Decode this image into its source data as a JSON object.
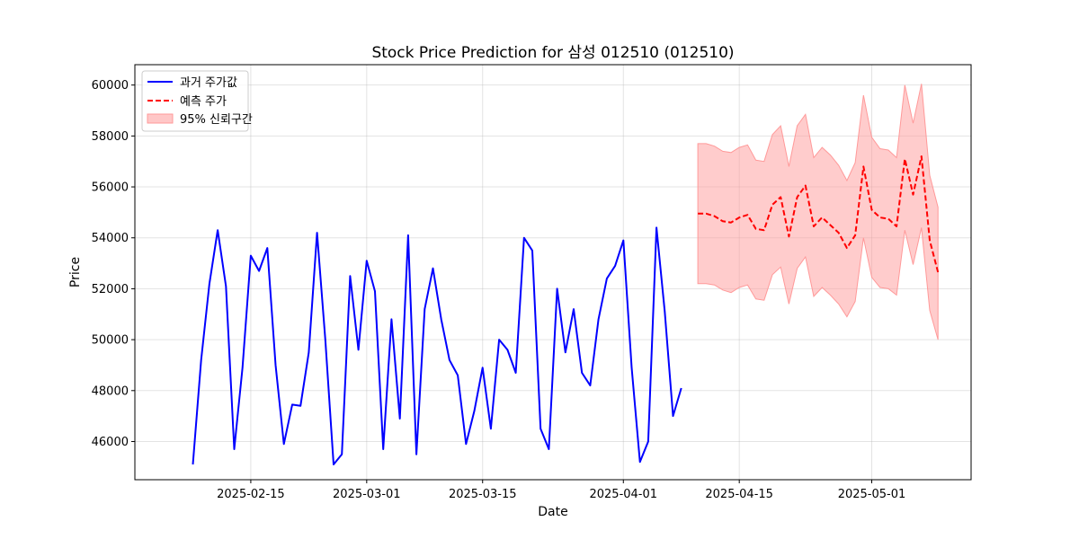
{
  "chart_data": {
    "type": "line",
    "title": "Stock Price Prediction for 삼성 012510 (012510)",
    "xlabel": "Date",
    "ylabel": "Price",
    "grid": true,
    "legend_position": "top-left",
    "x_range": [
      "2025-02-01",
      "2025-05-13"
    ],
    "ylim": [
      44500,
      60800
    ],
    "x_ticks": [
      "2025-02-15",
      "2025-03-01",
      "2025-03-15",
      "2025-04-01",
      "2025-04-15",
      "2025-05-01"
    ],
    "y_ticks": [
      46000,
      48000,
      50000,
      52000,
      54000,
      56000,
      58000,
      60000
    ],
    "colors": {
      "historical": "#0000ff",
      "forecast": "#ff0000",
      "interval_fill": "#ff9999"
    },
    "legend": {
      "historical": "과거 주가값",
      "forecast": "예측 주가",
      "interval": "95% 신뢰구간"
    },
    "historical": {
      "dates": [
        "2025-02-08",
        "2025-02-09",
        "2025-02-10",
        "2025-02-11",
        "2025-02-12",
        "2025-02-13",
        "2025-02-14",
        "2025-02-15",
        "2025-02-16",
        "2025-02-17",
        "2025-02-18",
        "2025-02-19",
        "2025-02-20",
        "2025-02-21",
        "2025-02-22",
        "2025-02-23",
        "2025-02-24",
        "2025-02-25",
        "2025-02-26",
        "2025-02-27",
        "2025-02-28",
        "2025-03-01",
        "2025-03-02",
        "2025-03-03",
        "2025-03-04",
        "2025-03-05",
        "2025-03-06",
        "2025-03-07",
        "2025-03-08",
        "2025-03-09",
        "2025-03-10",
        "2025-03-11",
        "2025-03-12",
        "2025-03-13",
        "2025-03-14",
        "2025-03-15",
        "2025-03-16",
        "2025-03-17",
        "2025-03-18",
        "2025-03-19",
        "2025-03-20",
        "2025-03-21",
        "2025-03-22",
        "2025-03-23",
        "2025-03-24",
        "2025-03-25",
        "2025-03-26",
        "2025-03-27",
        "2025-03-28",
        "2025-03-29",
        "2025-03-30",
        "2025-03-31",
        "2025-04-01",
        "2025-04-02",
        "2025-04-03",
        "2025-04-04",
        "2025-04-05",
        "2025-04-06",
        "2025-04-07",
        "2025-04-08"
      ],
      "values": [
        45100,
        49200,
        52200,
        54300,
        52100,
        45700,
        48900,
        53300,
        52700,
        53600,
        49000,
        45900,
        47450,
        47400,
        49500,
        54200,
        50000,
        45100,
        45500,
        52500,
        49600,
        53100,
        51900,
        45700,
        50800,
        46900,
        54100,
        45500,
        51200,
        52800,
        50800,
        49200,
        48600,
        45900,
        47200,
        48900,
        46500,
        50000,
        49600,
        48700,
        54000,
        53500,
        46500,
        45700,
        52000,
        49500,
        51200,
        48700,
        48200,
        50800,
        52400,
        52900,
        53900,
        48900,
        45200,
        46000,
        54400,
        51100,
        47000,
        48100
      ]
    },
    "forecast": {
      "dates": [
        "2025-04-10",
        "2025-04-11",
        "2025-04-12",
        "2025-04-13",
        "2025-04-14",
        "2025-04-15",
        "2025-04-16",
        "2025-04-17",
        "2025-04-18",
        "2025-04-19",
        "2025-04-20",
        "2025-04-21",
        "2025-04-22",
        "2025-04-23",
        "2025-04-24",
        "2025-04-25",
        "2025-04-26",
        "2025-04-27",
        "2025-04-28",
        "2025-04-29",
        "2025-04-30",
        "2025-05-01",
        "2025-05-02",
        "2025-05-03",
        "2025-05-04",
        "2025-05-05",
        "2025-05-06",
        "2025-05-07",
        "2025-05-08",
        "2025-05-09"
      ],
      "values": [
        54950,
        54950,
        54850,
        54650,
        54600,
        54800,
        54900,
        54350,
        54300,
        55300,
        55600,
        54050,
        55600,
        56050,
        54450,
        54800,
        54500,
        54200,
        53600,
        54100,
        56800,
        55100,
        54800,
        54750,
        54450,
        57100,
        55700,
        57200,
        53900,
        52650
      ],
      "lower": [
        52200,
        52200,
        52150,
        51950,
        51850,
        52050,
        52150,
        51600,
        51550,
        52550,
        52850,
        51400,
        52800,
        53250,
        51700,
        52050,
        51750,
        51400,
        50900,
        51500,
        54000,
        52450,
        52050,
        52000,
        51750,
        54300,
        52950,
        54400,
        51150,
        50000
      ],
      "upper": [
        57700,
        57700,
        57600,
        57400,
        57350,
        57550,
        57650,
        57050,
        57000,
        58050,
        58400,
        56800,
        58400,
        58850,
        57150,
        57550,
        57250,
        56850,
        56250,
        56950,
        59600,
        57950,
        57500,
        57450,
        57150,
        60000,
        58500,
        60050,
        56450,
        55200
      ]
    }
  }
}
